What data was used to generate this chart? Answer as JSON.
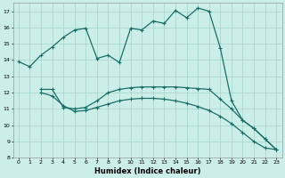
{
  "xlabel": "Humidex (Indice chaleur)",
  "bg_color": "#cceee8",
  "grid_color": "#aad8d0",
  "line_color": "#1a6e68",
  "xlim": [
    -0.5,
    23.5
  ],
  "ylim": [
    8,
    17.5
  ],
  "yticks": [
    8,
    9,
    10,
    11,
    12,
    13,
    14,
    15,
    16,
    17
  ],
  "xticks": [
    0,
    1,
    2,
    3,
    4,
    5,
    6,
    7,
    8,
    9,
    10,
    11,
    12,
    13,
    14,
    15,
    16,
    17,
    18,
    19,
    20,
    21,
    22,
    23
  ],
  "curve1_x": [
    0,
    1,
    2,
    3,
    4,
    5,
    6,
    7,
    8,
    9,
    10,
    11,
    12,
    13,
    14,
    15,
    16,
    17,
    18,
    19,
    20,
    21,
    22,
    23
  ],
  "curve1_y": [
    13.9,
    13.6,
    14.3,
    14.8,
    15.4,
    15.85,
    15.95,
    14.1,
    14.3,
    13.85,
    15.95,
    15.85,
    16.4,
    16.25,
    17.05,
    16.6,
    17.2,
    17.0,
    14.75,
    11.5,
    10.3,
    9.8,
    9.15,
    8.5
  ],
  "curve2_x": [
    2,
    3,
    4,
    5,
    6,
    7,
    8,
    9,
    10,
    11,
    12,
    13,
    14,
    15,
    16,
    17,
    18,
    19,
    20,
    21,
    22,
    23
  ],
  "curve2_y": [
    12.2,
    12.2,
    11.1,
    11.0,
    11.1,
    11.5,
    12.0,
    12.2,
    12.3,
    12.35,
    12.35,
    12.35,
    12.35,
    12.3,
    12.25,
    12.2,
    11.6,
    11.0,
    10.3,
    9.8,
    9.15,
    8.5
  ],
  "curve3_x": [
    2,
    3,
    4,
    5,
    6,
    7,
    8,
    9,
    10,
    11,
    12,
    13,
    14,
    15,
    16,
    17,
    18,
    19,
    20,
    21,
    22,
    23
  ],
  "curve3_y": [
    12.0,
    11.8,
    11.2,
    10.85,
    10.9,
    11.1,
    11.3,
    11.5,
    11.6,
    11.65,
    11.65,
    11.6,
    11.5,
    11.35,
    11.15,
    10.9,
    10.55,
    10.1,
    9.55,
    9.0,
    8.6,
    8.5
  ]
}
